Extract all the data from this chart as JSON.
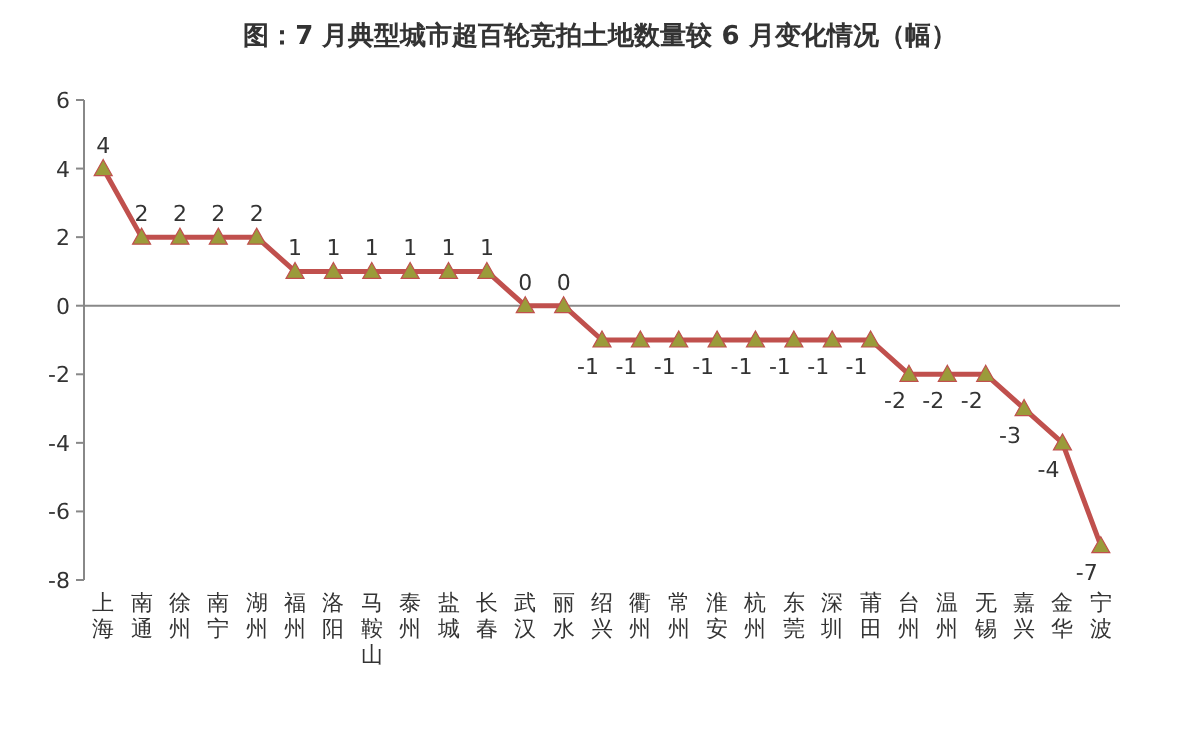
{
  "chart_data": {
    "type": "line",
    "title": "图：7 月典型城市超百轮竞拍土地数量较 6 月变化情况（幅）",
    "categories": [
      "上海",
      "南通",
      "徐州",
      "南宁",
      "湖州",
      "福州",
      "洛阳",
      "马鞍山",
      "泰州",
      "盐城",
      "长春",
      "武汉",
      "丽水",
      "绍兴",
      "衢州",
      "常州",
      "淮安",
      "杭州",
      "东莞",
      "深圳",
      "莆田",
      "台州",
      "温州",
      "无锡",
      "嘉兴",
      "金华",
      "宁波"
    ],
    "values": [
      4,
      2,
      2,
      2,
      2,
      1,
      1,
      1,
      1,
      1,
      1,
      0,
      0,
      -1,
      -1,
      -1,
      -1,
      -1,
      -1,
      -1,
      -1,
      -2,
      -2,
      -2,
      -3,
      -4,
      -7
    ],
    "color": "#c0504d",
    "marker": "triangle",
    "line_style": "solid",
    "data_labels": true,
    "ylim": [
      -8,
      6
    ],
    "yticks": [
      -8,
      -6,
      -4,
      -2,
      0,
      2,
      4,
      6
    ]
  }
}
